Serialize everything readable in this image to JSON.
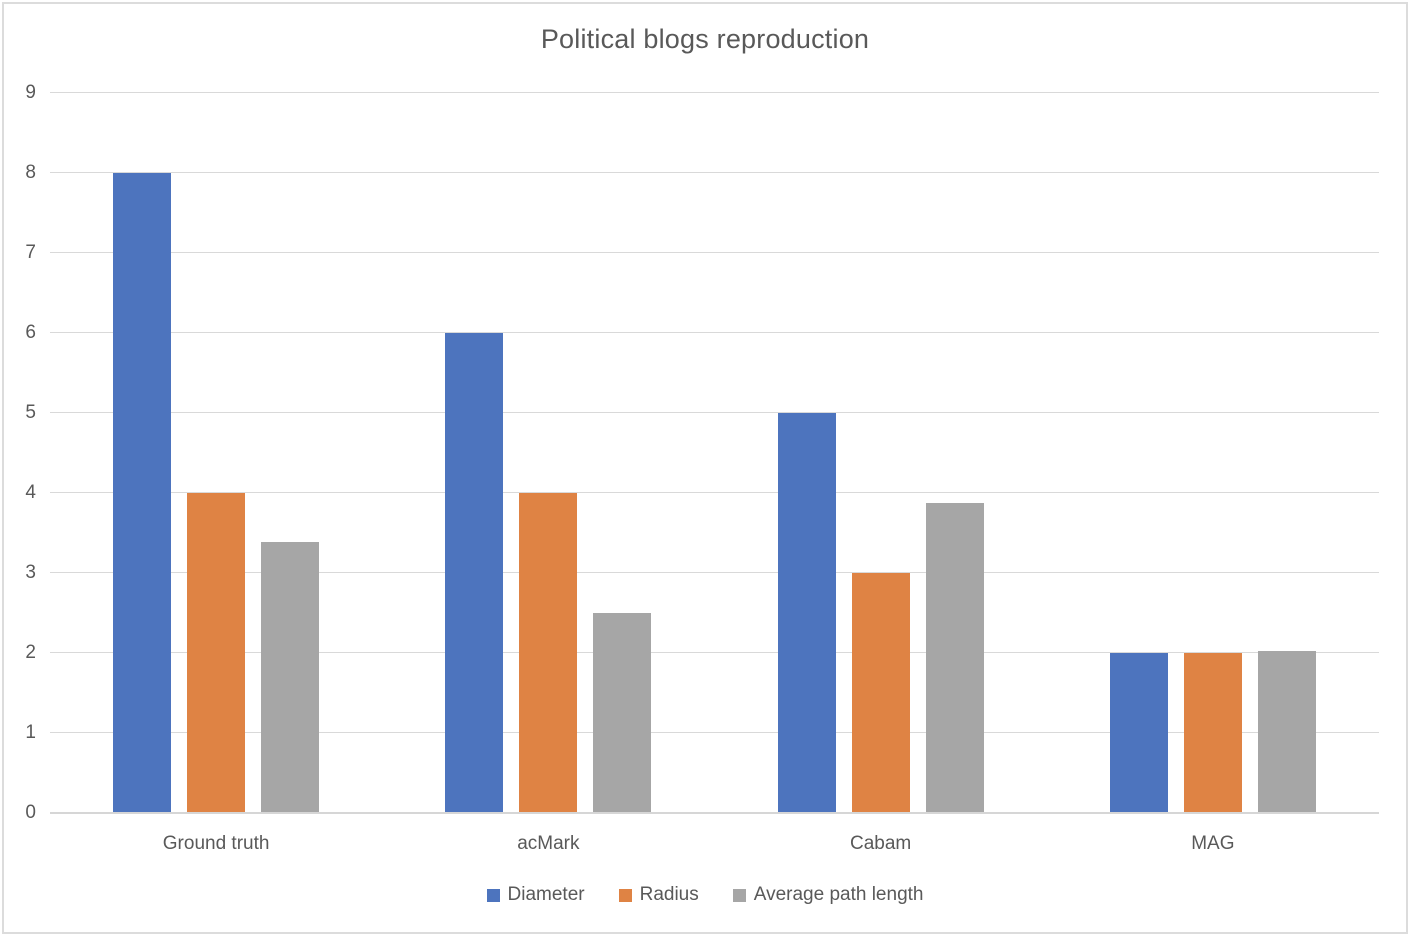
{
  "chart_data": {
    "type": "bar",
    "title": "Political blogs reproduction",
    "categories": [
      "Ground truth",
      "acMark",
      "Cabam",
      "MAG"
    ],
    "series": [
      {
        "name": "Diameter",
        "color": "#4D74BE",
        "values": [
          8,
          6,
          5,
          2
        ]
      },
      {
        "name": "Radius",
        "color": "#DF8344",
        "values": [
          4,
          4,
          3,
          2
        ]
      },
      {
        "name": "Average path length",
        "color": "#A6A6A6",
        "values": [
          3.39,
          2.5,
          3.88,
          2.03
        ]
      }
    ],
    "xlabel": "",
    "ylabel": "",
    "ylim": [
      0,
      9
    ],
    "ytick_interval": 1,
    "ytick_labels": [
      "0",
      "1",
      "2",
      "3",
      "4",
      "5",
      "6",
      "7",
      "8",
      "9"
    ],
    "grid": true,
    "legend_position": "bottom",
    "colors": {
      "title_text": "#595959",
      "axis_text": "#595959",
      "gridline": "#d9d9d9",
      "background": "#ffffff",
      "frame_border": "#dcdcdc"
    }
  }
}
